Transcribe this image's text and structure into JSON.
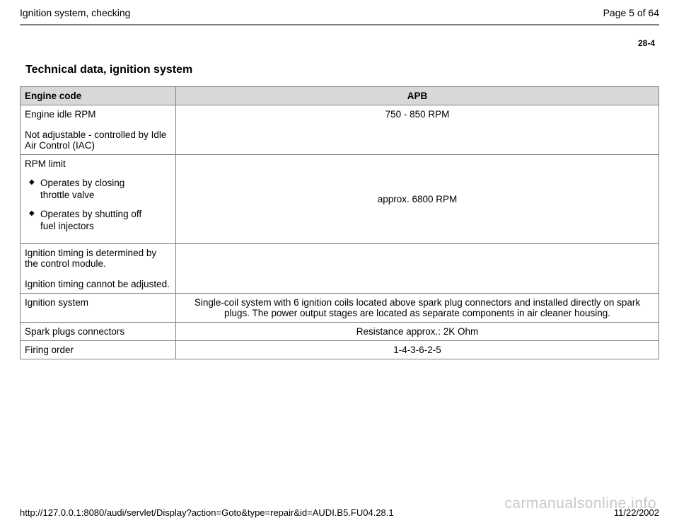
{
  "header": {
    "title": "Ignition system, checking",
    "page_indicator": "Page 5 of 64"
  },
  "page_number": "28-4",
  "section_heading": "Technical data, ignition system",
  "table": {
    "header_label": "Engine code",
    "header_value": "APB",
    "rows": {
      "idle": {
        "label_main": "Engine idle RPM",
        "label_note": "Not adjustable - controlled by Idle Air Control (IAC)",
        "value": "750 - 850 RPM"
      },
      "rpm_limit": {
        "label_main": "RPM limit",
        "bullet1": "Operates by closing throttle valve",
        "bullet2": "Operates by shutting off fuel injectors",
        "value": "approx. 6800 RPM"
      },
      "timing": {
        "p1": "Ignition timing is determined by the control module.",
        "p2": "Ignition timing cannot be adjusted.",
        "value": ""
      },
      "system": {
        "label": "Ignition system",
        "value": "Single-coil system with 6 ignition coils located above spark plug connectors and installed directly on spark plugs. The power output stages are located as separate components in air cleaner housing."
      },
      "spark": {
        "label": "Spark plugs connectors",
        "value": "Resistance approx.: 2K Ohm"
      },
      "firing": {
        "label": "Firing order",
        "value": "1-4-3-6-2-5"
      }
    }
  },
  "footer": {
    "url": "http://127.0.0.1:8080/audi/servlet/Display?action=Goto&type=repair&id=AUDI.B5.FU04.28.1",
    "date": "11/22/2002"
  },
  "watermark": "carmanualsonline.info",
  "colors": {
    "header_bg": "#d8d8d8",
    "border": "#808080",
    "watermark": "#c8c8c8",
    "background": "#ffffff",
    "text": "#000000"
  }
}
